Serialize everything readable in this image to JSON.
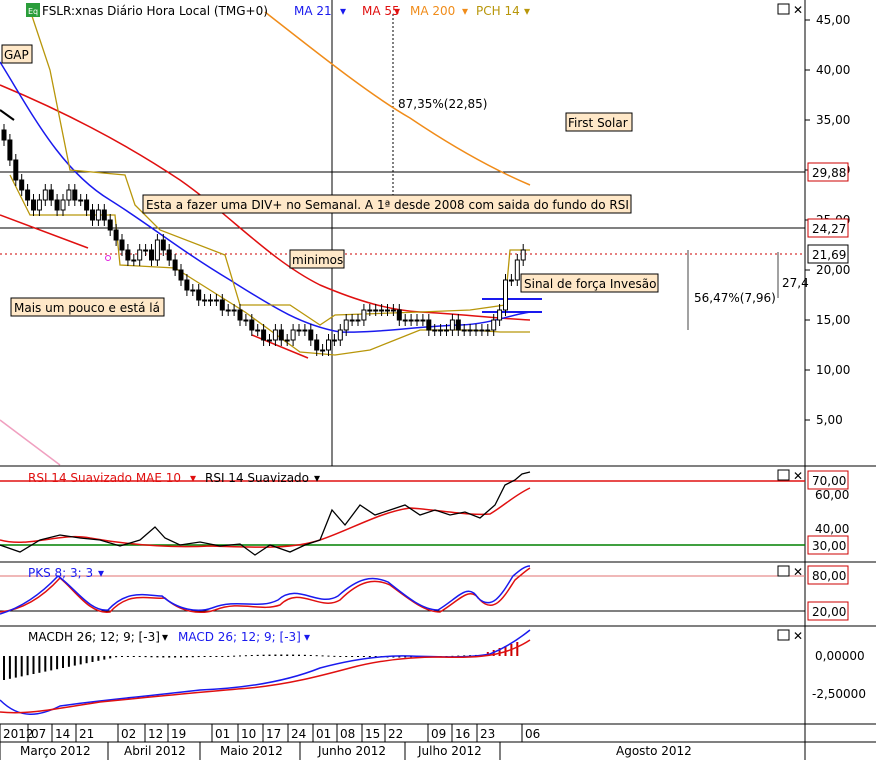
{
  "header": {
    "symbol": "FSLR:xnas Diário Hora Local (TMG+0)",
    "ma21": "MA 21",
    "ma55": "MA 55",
    "ma200": "MA 200",
    "pch14": "PCH 14"
  },
  "colors": {
    "ma21": "#1a1aee",
    "ma55": "#e01010",
    "ma200": "#f08c1a",
    "pch": "#b8960a",
    "price": "#000000",
    "grid": "#000000",
    "rsi_upper": "#e01010",
    "rsi_lower": "#008000"
  },
  "annotations": {
    "gap": "GAP",
    "pct_drop": "87,35%(22,85)",
    "first_solar": "First Solar",
    "div_note": "Esta a fazer uma DIV+ no Semanal. A 1ª desde 2008 com saida do fundo do RSI",
    "minimos": "minimos",
    "sinal": "Sinal de força Invesão",
    "mais_um": "Mais um pouco e está lá",
    "pct_rise": "56,47%(7,96)",
    "rise_val": "27,4"
  },
  "price_tags": [
    "29,88",
    "24,27",
    "21,69"
  ],
  "rsi": {
    "title1": "RSI 14 Suavizado MAE 10",
    "title2": "RSI 14 Suavizado",
    "tag_hi": "70,00",
    "tag_lo": "30,00",
    "ticks": [
      "60,00",
      "40,00"
    ]
  },
  "pks": {
    "title": "PKS 8; 3; 3",
    "tag_hi": "80,00",
    "tag_lo": "20,00"
  },
  "macd": {
    "title1": "MACDH 26; 12; 9; [-3]",
    "title2": "MACD 26; 12; 9; [-3]",
    "ticks": [
      "0,00000",
      "-2,50000"
    ]
  },
  "chart_data": {
    "type": "candlestick",
    "title": "FSLR:xnas Diário Hora Local (TMG+0)",
    "y_ticks": [
      "45,00",
      "40,00",
      "35,00",
      "30,00",
      "25,00",
      "20,00",
      "15,00",
      "10,00",
      "5,00"
    ],
    "ylim": [
      0,
      47
    ],
    "x_days": [
      "2012",
      "07",
      "14",
      "21",
      "02",
      "12",
      "19",
      "01",
      "10",
      "17",
      "24",
      "01",
      "08",
      "15",
      "22",
      "09",
      "16",
      "23",
      "06"
    ],
    "x_months": [
      "Março 2012",
      "Abril 2012",
      "Maio 2012",
      "Junho 2012",
      "Julho 2012",
      "Agosto 2012"
    ],
    "closes": [
      33,
      31,
      29,
      28,
      27,
      26,
      27,
      28,
      27,
      26,
      27,
      28,
      27,
      27,
      26,
      25,
      26,
      25,
      24,
      23,
      22,
      21,
      21,
      22,
      22,
      21,
      23,
      22,
      21,
      20,
      19,
      18,
      18,
      17,
      17,
      17,
      17,
      16,
      16,
      16,
      15,
      15,
      14,
      14,
      13,
      13,
      14,
      13,
      13,
      14,
      14,
      14,
      13,
      12,
      12,
      13,
      13,
      14,
      15,
      15,
      15,
      16,
      16,
      16,
      16,
      16,
      16,
      15,
      15,
      15,
      15,
      15,
      14,
      14,
      14,
      14,
      15,
      14,
      14,
      14,
      14,
      14,
      14,
      15,
      16,
      19,
      19,
      21,
      22
    ]
  }
}
